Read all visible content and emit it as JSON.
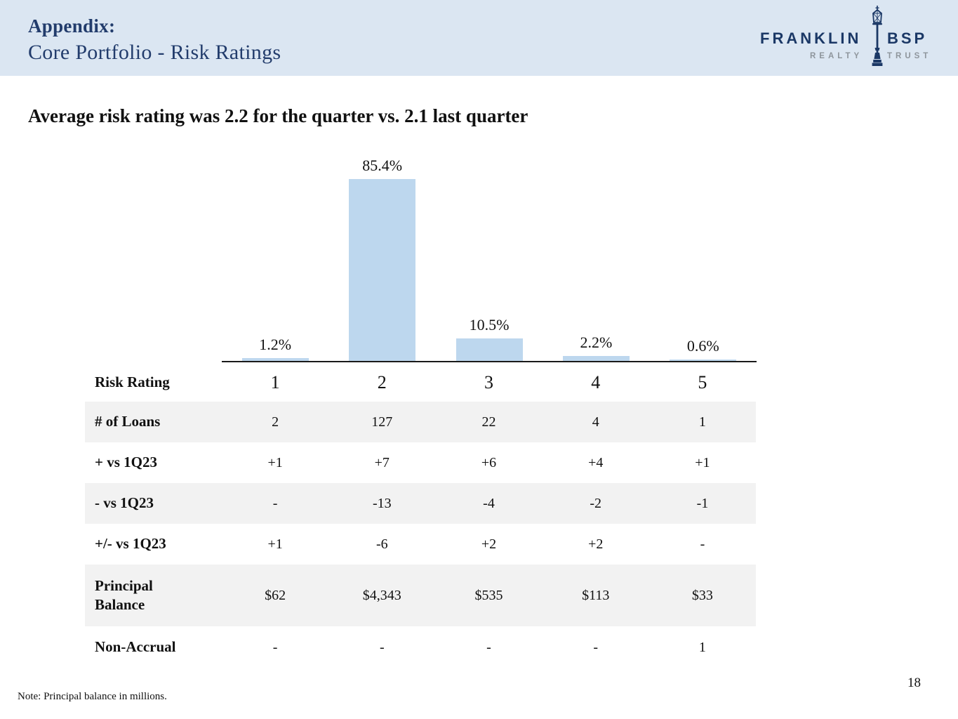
{
  "colors": {
    "header_bg": "#dbe6f2",
    "navy": "#223c6c",
    "logo_navy": "#1b3866",
    "logo_gray": "#8e959c",
    "bar_fill": "#bdd7ee",
    "row_shade": "#f2f2f2",
    "text": "#111111"
  },
  "header": {
    "kicker": "Appendix:",
    "title": "Core Portfolio - Risk Ratings"
  },
  "logo": {
    "brand_left": "FRANKLIN",
    "brand_right": "BSP",
    "sub_left": "REALTY",
    "sub_right": "TRUST"
  },
  "headline": "Average risk rating was 2.2 for the quarter vs. 2.1 last quarter",
  "chart_data": [
    {
      "type": "bar",
      "categories": [
        "1",
        "2",
        "3",
        "4",
        "5"
      ],
      "values": [
        1.2,
        85.4,
        10.5,
        2.2,
        0.6
      ],
      "data_labels": [
        "1.2%",
        "85.4%",
        "10.5%",
        "2.2%",
        "0.6%"
      ],
      "xlabel": "Risk Rating",
      "ylabel": "",
      "ylim": [
        0,
        100
      ],
      "grid": false,
      "legend": false,
      "bar_color": "#bdd7ee"
    },
    {
      "type": "table",
      "rows": [
        {
          "label": "Risk Rating",
          "values": [
            "1",
            "2",
            "3",
            "4",
            "5"
          ],
          "shaded": false,
          "large": true
        },
        {
          "label": "# of Loans",
          "values": [
            "2",
            "127",
            "22",
            "4",
            "1"
          ],
          "shaded": true
        },
        {
          "label": "+ vs 1Q23",
          "values": [
            "+1",
            "+7",
            "+6",
            "+4",
            "+1"
          ],
          "shaded": false
        },
        {
          "label": "- vs 1Q23",
          "values": [
            "-",
            "-13",
            "-4",
            "-2",
            "-1"
          ],
          "shaded": true
        },
        {
          "label": "+/- vs 1Q23",
          "values": [
            "+1",
            "-6",
            "+2",
            "+2",
            "-"
          ],
          "shaded": false
        },
        {
          "label": "Principal Balance",
          "values": [
            "$62",
            "$4,343",
            "$535",
            "$113",
            "$33"
          ],
          "shaded": true,
          "tall": true
        },
        {
          "label": "Non-Accrual",
          "values": [
            "-",
            "-",
            "-",
            "-",
            "1"
          ],
          "shaded": false
        }
      ]
    }
  ],
  "note": "Note: Principal balance in millions.",
  "page_number": "18"
}
